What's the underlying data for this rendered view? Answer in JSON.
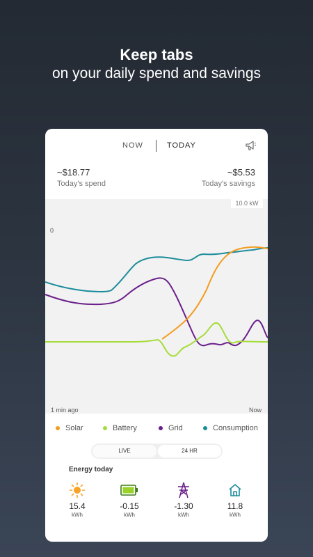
{
  "header": {
    "title": "Keep tabs",
    "subtitle": "on your daily spend and savings"
  },
  "tabs": {
    "now": "NOW",
    "today": "TODAY"
  },
  "summary": {
    "spend_value": "~$18.77",
    "spend_label": "Today's spend",
    "savings_value": "~$5.53",
    "savings_label": "Today's savings"
  },
  "chart": {
    "scale_label": "10.0 kW",
    "zero_label": "0",
    "x_start": "1 min ago",
    "x_end": "Now"
  },
  "legend": [
    {
      "label": "Solar",
      "color": "#f39c1f"
    },
    {
      "label": "Battery",
      "color": "#a6dc3b"
    },
    {
      "label": "Grid",
      "color": "#6a1f8a"
    },
    {
      "label": "Consumption",
      "color": "#1b8c9a"
    }
  ],
  "toggle": {
    "live": "LIVE",
    "day": "24 HR"
  },
  "energy": {
    "title": "Energy today",
    "items": [
      {
        "icon": "sun-icon",
        "value": "15.4",
        "unit": "kWh"
      },
      {
        "icon": "battery-icon",
        "value": "-0.15",
        "unit": "kWh"
      },
      {
        "icon": "pylon-icon",
        "value": "-1.30",
        "unit": "kWh"
      },
      {
        "icon": "house-icon",
        "value": "11.8",
        "unit": "kWh"
      }
    ]
  },
  "chart_data": {
    "type": "line",
    "x": [
      "1 min ago",
      "Now"
    ],
    "series": [
      {
        "name": "Solar",
        "color": "#f39c1f"
      },
      {
        "name": "Battery",
        "color": "#a6dc3b"
      },
      {
        "name": "Grid",
        "color": "#6a1f8a"
      },
      {
        "name": "Consumption",
        "color": "#1b8c9a"
      }
    ]
  }
}
